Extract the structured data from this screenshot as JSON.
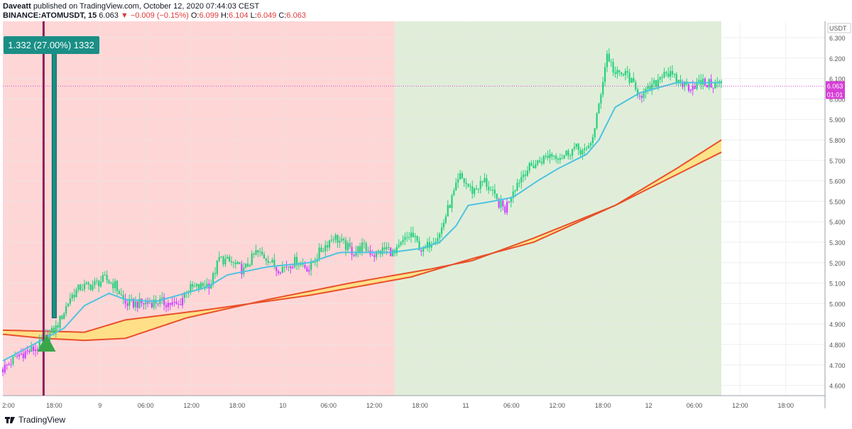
{
  "header": {
    "author": "Daveatt",
    "published_text": "published on TradingView.com, October 12, 2020 07:44:03 CEST",
    "symbol": "BINANCE:ATOMUSDT, 15",
    "last_price": "6.063",
    "change": "▼ −0.009 (−0.15%)",
    "ohlc": {
      "o_label": "O:",
      "o": "6.099",
      "h_label": "H:",
      "h": "6.104",
      "l_label": "L:",
      "l": "6.049",
      "c_label": "C:",
      "c": "6.063"
    }
  },
  "footer": {
    "brand": "TradingView"
  },
  "colors": {
    "bull": "#26d07c",
    "bear_highlight": "#cc44ff",
    "ema_fast": "#4fc3e0",
    "ribbon_fill": "#ffe07a",
    "ribbon_line": "#e8502a",
    "bg_red": "#ffd6d6",
    "bg_green": "#e0eed9",
    "position": "#1a8f86",
    "signal_line": "#8a1f5c",
    "buy_arrow": "#3aa64a",
    "price_tag": "#d63fd6"
  },
  "chart_data": {
    "type": "candlestick",
    "price_axis": {
      "currency": "USDT",
      "ticks": [
        "6.300",
        "6.200",
        "6.100",
        "6.000",
        "5.900",
        "5.800",
        "5.700",
        "5.600",
        "5.500",
        "5.400",
        "5.300",
        "5.200",
        "5.100",
        "5.000",
        "4.900",
        "4.800",
        "4.700",
        "4.600"
      ],
      "ylim": [
        4.55,
        6.38
      ]
    },
    "time_axis": {
      "ticks": [
        "2:00",
        "18:00",
        "9",
        "06:00",
        "12:00",
        "18:00",
        "10",
        "06:00",
        "12:00",
        "18:00",
        "11",
        "06:00",
        "12:00",
        "18:00",
        "12",
        "06:00",
        "12:00",
        "18:00"
      ]
    },
    "last_price_tag": {
      "price": "6.063",
      "countdown": "01:01"
    },
    "position_label": "1.332 (27.00%) 1332",
    "close_path": [
      [
        0,
        4.68
      ],
      [
        8,
        4.75
      ],
      [
        16,
        4.78
      ],
      [
        22,
        4.84
      ],
      [
        26,
        4.88
      ],
      [
        30,
        4.96
      ],
      [
        33,
        5.03
      ],
      [
        38,
        5.08
      ],
      [
        44,
        5.09
      ],
      [
        50,
        5.12
      ],
      [
        55,
        5.09
      ],
      [
        60,
        5.0
      ],
      [
        68,
        5.0
      ],
      [
        76,
        5.01
      ],
      [
        82,
        5.0
      ],
      [
        86,
        4.99
      ],
      [
        90,
        5.07
      ],
      [
        96,
        5.08
      ],
      [
        102,
        5.1
      ],
      [
        106,
        5.22
      ],
      [
        112,
        5.2
      ],
      [
        118,
        5.16
      ],
      [
        124,
        5.25
      ],
      [
        130,
        5.22
      ],
      [
        134,
        5.17
      ],
      [
        138,
        5.18
      ],
      [
        144,
        5.21
      ],
      [
        150,
        5.17
      ],
      [
        155,
        5.25
      ],
      [
        162,
        5.33
      ],
      [
        168,
        5.28
      ],
      [
        172,
        5.25
      ],
      [
        176,
        5.28
      ],
      [
        182,
        5.24
      ],
      [
        188,
        5.27
      ],
      [
        192,
        5.24
      ],
      [
        196,
        5.3
      ],
      [
        200,
        5.34
      ],
      [
        206,
        5.25
      ],
      [
        210,
        5.31
      ],
      [
        214,
        5.34
      ],
      [
        218,
        5.46
      ],
      [
        224,
        5.62
      ],
      [
        230,
        5.55
      ],
      [
        236,
        5.6
      ],
      [
        242,
        5.5
      ],
      [
        246,
        5.46
      ],
      [
        250,
        5.56
      ],
      [
        256,
        5.65
      ],
      [
        262,
        5.69
      ],
      [
        268,
        5.73
      ],
      [
        274,
        5.72
      ],
      [
        280,
        5.76
      ],
      [
        286,
        5.74
      ],
      [
        290,
        5.85
      ],
      [
        296,
        6.22
      ],
      [
        300,
        6.12
      ],
      [
        306,
        6.12
      ],
      [
        310,
        6.04
      ],
      [
        314,
        6.02
      ],
      [
        320,
        6.08
      ],
      [
        324,
        6.14
      ],
      [
        330,
        6.09
      ],
      [
        336,
        6.06
      ],
      [
        342,
        6.08
      ],
      [
        348,
        6.07
      ],
      [
        352,
        6.08
      ]
    ],
    "ema_fast_path": [
      [
        0,
        4.72
      ],
      [
        30,
        4.88
      ],
      [
        40,
        4.99
      ],
      [
        52,
        5.05
      ],
      [
        60,
        5.02
      ],
      [
        75,
        5.01
      ],
      [
        100,
        5.08
      ],
      [
        110,
        5.14
      ],
      [
        130,
        5.18
      ],
      [
        150,
        5.2
      ],
      [
        165,
        5.25
      ],
      [
        190,
        5.25
      ],
      [
        205,
        5.27
      ],
      [
        214,
        5.3
      ],
      [
        222,
        5.38
      ],
      [
        228,
        5.48
      ],
      [
        240,
        5.5
      ],
      [
        250,
        5.52
      ],
      [
        262,
        5.6
      ],
      [
        272,
        5.66
      ],
      [
        286,
        5.73
      ],
      [
        292,
        5.8
      ],
      [
        300,
        5.96
      ],
      [
        312,
        6.03
      ],
      [
        330,
        6.08
      ],
      [
        352,
        6.08
      ]
    ],
    "ribbon_upper_path": [
      [
        0,
        4.87
      ],
      [
        40,
        4.86
      ],
      [
        60,
        4.92
      ],
      [
        100,
        4.97
      ],
      [
        150,
        5.04
      ],
      [
        200,
        5.13
      ],
      [
        230,
        5.22
      ],
      [
        260,
        5.3
      ],
      [
        300,
        5.48
      ],
      [
        330,
        5.66
      ],
      [
        352,
        5.8
      ]
    ],
    "ribbon_lower_path": [
      [
        0,
        4.85
      ],
      [
        20,
        4.83
      ],
      [
        40,
        4.82
      ],
      [
        60,
        4.83
      ],
      [
        90,
        4.93
      ],
      [
        130,
        5.02
      ],
      [
        170,
        5.1
      ],
      [
        210,
        5.17
      ],
      [
        230,
        5.21
      ],
      [
        260,
        5.32
      ],
      [
        300,
        5.48
      ],
      [
        330,
        5.63
      ],
      [
        352,
        5.74
      ]
    ],
    "buy_signal": {
      "bar": 20,
      "price": 4.8
    },
    "position": {
      "entry_bar": 21,
      "entry_price": 4.93,
      "target_price": 6.27
    },
    "zones": {
      "red_end_bar": 192,
      "green_end_bar": 352
    }
  }
}
